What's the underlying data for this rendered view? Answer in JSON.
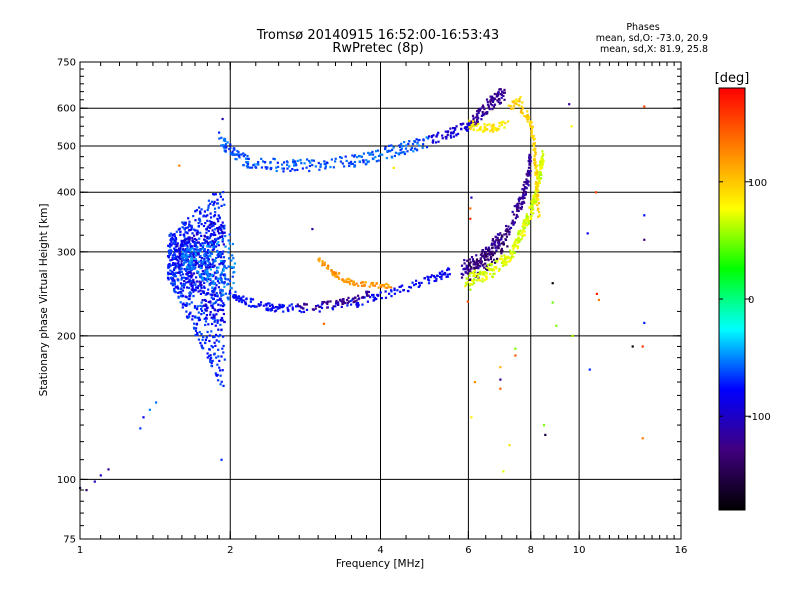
{
  "chart_data": {
    "type": "scatter",
    "title": "Tromsø 20140915 16:52:00-16:53:43",
    "subtitle": "RwPretec (8p)",
    "xlabel": "Frequency [MHz]",
    "ylabel": "Stationary phase Virtual Height [km]",
    "x_scale": "log",
    "y_scale": "log",
    "xlim": [
      1,
      16
    ],
    "ylim": [
      75,
      750
    ],
    "x_ticks": [
      1,
      2,
      4,
      6,
      8,
      10,
      16
    ],
    "x_tick_labels": [
      "1",
      "2",
      "4",
      "6",
      "8",
      "10",
      "16"
    ],
    "y_ticks": [
      75,
      100,
      200,
      300,
      400,
      500,
      600,
      750
    ],
    "y_tick_labels": [
      "75",
      "100",
      "200",
      "300",
      "400",
      "500",
      "600",
      "750"
    ],
    "x_gridlines": [
      2,
      4,
      6,
      8,
      10
    ],
    "y_gridlines": [
      100,
      200,
      300,
      400,
      500,
      600
    ],
    "grid": true,
    "phases_header": "Phases",
    "phase_stats": [
      "mean, sd,O: -73.0, 20.9",
      "mean, sd,X:  81.9, 25.8"
    ],
    "colorbar": {
      "label": "[deg]",
      "range": [
        -180,
        180
      ],
      "ticks": [
        100,
        0,
        -100
      ],
      "tick_labels": [
        "100",
        "0",
        "-100"
      ],
      "colors": [
        "#ff0000",
        "#ff8000",
        "#ffff00",
        "#00ff00",
        "#00ffff",
        "#0000ff",
        "#400080",
        "#000000"
      ]
    },
    "traces": [
      {
        "kind": "point",
        "phase": -140,
        "x": 1.0,
        "y": 96
      },
      {
        "kind": "point",
        "phase": -140,
        "x": 1.03,
        "y": 95
      },
      {
        "kind": "point",
        "phase": -110,
        "x": 1.07,
        "y": 99
      },
      {
        "kind": "point",
        "phase": -110,
        "x": 1.1,
        "y": 102
      },
      {
        "kind": "point",
        "phase": -120,
        "x": 1.14,
        "y": 105
      },
      {
        "kind": "point",
        "phase": -70,
        "x": 1.32,
        "y": 128
      },
      {
        "kind": "point",
        "phase": -70,
        "x": 1.34,
        "y": 135
      },
      {
        "kind": "point",
        "phase": -60,
        "x": 1.38,
        "y": 140
      },
      {
        "kind": "point",
        "phase": -60,
        "x": 1.42,
        "y": 145
      },
      {
        "kind": "cloud",
        "phase": -70,
        "x": [
          1.5,
          1.95
        ],
        "y": [
          150,
          420
        ],
        "n": 700
      },
      {
        "kind": "cloud",
        "phase": -90,
        "x": [
          1.55,
          1.95
        ],
        "y": [
          200,
          360
        ],
        "n": 250
      },
      {
        "kind": "cloud",
        "phase": -55,
        "x": [
          1.6,
          2.05
        ],
        "y": [
          230,
          330
        ],
        "n": 200
      },
      {
        "kind": "band",
        "phase": -60,
        "x": [
          1.9,
          2.0,
          2.1,
          2.2,
          2.4,
          2.6,
          2.8,
          3.1,
          3.4,
          3.7,
          4.0,
          4.3,
          4.6,
          5.0
        ],
        "y": [
          520,
          490,
          470,
          462,
          458,
          455,
          455,
          458,
          462,
          470,
          480,
          490,
          500,
          510
        ],
        "spread": 0.03,
        "n": 260
      },
      {
        "kind": "band",
        "phase": -95,
        "x": [
          5.0,
          5.3,
          5.6,
          5.9,
          6.1
        ],
        "y": [
          515,
          525,
          535,
          548,
          560
        ],
        "spread": 0.025,
        "n": 60
      },
      {
        "kind": "band",
        "phase": -80,
        "x": [
          2.0,
          2.1,
          2.3,
          2.5,
          2.8,
          3.2,
          3.6,
          4.0,
          4.5,
          5.0,
          5.5
        ],
        "y": [
          245,
          238,
          232,
          229,
          228,
          230,
          235,
          243,
          252,
          262,
          272
        ],
        "spread": 0.02,
        "n": 200
      },
      {
        "kind": "band",
        "phase": -120,
        "x": [
          2.7,
          3.0,
          3.3,
          3.6,
          3.8
        ],
        "y": [
          230,
          231,
          235,
          240,
          246
        ],
        "spread": 0.015,
        "n": 60
      },
      {
        "kind": "band",
        "phase": 120,
        "x": [
          3.0,
          3.2,
          3.4,
          3.6,
          3.9,
          4.2
        ],
        "y": [
          290,
          272,
          262,
          257,
          255,
          255
        ],
        "spread": 0.012,
        "n": 90
      },
      {
        "kind": "band",
        "phase": -120,
        "x": [
          5.8,
          6.2,
          6.6,
          7.0,
          7.4,
          7.7,
          7.9,
          8.0
        ],
        "y": [
          275,
          285,
          300,
          322,
          355,
          390,
          430,
          470
        ],
        "spread": 0.04,
        "n": 220
      },
      {
        "kind": "band",
        "phase": -140,
        "x": [
          6.0,
          6.4,
          6.8,
          7.2
        ],
        "y": [
          270,
          282,
          298,
          320
        ],
        "spread": 0.05,
        "n": 70
      },
      {
        "kind": "band",
        "phase": 70,
        "x": [
          5.9,
          6.4,
          6.9,
          7.3,
          7.7,
          8.0,
          8.2,
          8.35,
          8.45
        ],
        "y": [
          262,
          268,
          280,
          298,
          330,
          365,
          400,
          440,
          480
        ],
        "spread": 0.035,
        "n": 300
      },
      {
        "kind": "band",
        "phase": 95,
        "x": [
          7.6,
          7.85,
          8.0,
          8.1,
          8.15,
          8.2,
          8.25,
          8.3
        ],
        "y": [
          600,
          580,
          555,
          520,
          480,
          440,
          400,
          360
        ],
        "spread": 0.02,
        "n": 110
      },
      {
        "kind": "band",
        "phase": -120,
        "x": [
          6.1,
          6.3,
          6.5,
          6.7,
          6.9,
          7.1
        ],
        "y": [
          560,
          580,
          600,
          620,
          635,
          640
        ],
        "spread": 0.035,
        "n": 90
      },
      {
        "kind": "band",
        "phase": 85,
        "x": [
          6.0,
          6.3,
          6.6,
          6.9,
          7.2
        ],
        "y": [
          555,
          548,
          545,
          548,
          560
        ],
        "spread": 0.02,
        "n": 55
      },
      {
        "kind": "band",
        "phase": 95,
        "x": [
          7.2,
          7.4,
          7.6,
          7.7
        ],
        "y": [
          600,
          610,
          620,
          630
        ],
        "spread": 0.02,
        "n": 18
      },
      {
        "kind": "point",
        "phase": 140,
        "x": 1.58,
        "y": 455
      },
      {
        "kind": "point",
        "phase": -110,
        "x": 1.93,
        "y": 570
      },
      {
        "kind": "point",
        "phase": -60,
        "x": 1.92,
        "y": 110
      },
      {
        "kind": "point",
        "phase": -110,
        "x": 2.92,
        "y": 335
      },
      {
        "kind": "point",
        "phase": 140,
        "x": 3.08,
        "y": 212
      },
      {
        "kind": "point",
        "phase": 100,
        "x": 4.25,
        "y": 450
      },
      {
        "kind": "point",
        "phase": 140,
        "x": 5.98,
        "y": 236
      },
      {
        "kind": "point",
        "phase": 60,
        "x": 6.05,
        "y": 250
      },
      {
        "kind": "point",
        "phase": 150,
        "x": 6.05,
        "y": 352
      },
      {
        "kind": "point",
        "phase": 140,
        "x": 6.05,
        "y": 370
      },
      {
        "kind": "point",
        "phase": -110,
        "x": 6.08,
        "y": 390
      },
      {
        "kind": "point",
        "phase": 130,
        "x": 6.18,
        "y": 160
      },
      {
        "kind": "point",
        "phase": 90,
        "x": 6.08,
        "y": 135
      },
      {
        "kind": "point",
        "phase": 120,
        "x": 6.95,
        "y": 172
      },
      {
        "kind": "point",
        "phase": -130,
        "x": 6.95,
        "y": 162
      },
      {
        "kind": "point",
        "phase": 150,
        "x": 6.95,
        "y": 155
      },
      {
        "kind": "point",
        "phase": 90,
        "x": 7.25,
        "y": 118
      },
      {
        "kind": "point",
        "phase": 70,
        "x": 7.05,
        "y": 104
      },
      {
        "kind": "point",
        "phase": 60,
        "x": 7.45,
        "y": 188
      },
      {
        "kind": "point",
        "phase": 140,
        "x": 7.45,
        "y": 182
      },
      {
        "kind": "point",
        "phase": 60,
        "x": 8.5,
        "y": 130
      },
      {
        "kind": "point",
        "phase": -160,
        "x": 8.55,
        "y": 124
      },
      {
        "kind": "point",
        "phase": 40,
        "x": 8.85,
        "y": 235
      },
      {
        "kind": "point",
        "phase": -170,
        "x": 8.85,
        "y": 258
      },
      {
        "kind": "point",
        "phase": 60,
        "x": 9.0,
        "y": 210
      },
      {
        "kind": "point",
        "phase": -130,
        "x": 9.55,
        "y": 612
      },
      {
        "kind": "point",
        "phase": 70,
        "x": 9.65,
        "y": 550
      },
      {
        "kind": "point",
        "phase": 60,
        "x": 9.7,
        "y": 200
      },
      {
        "kind": "point",
        "phase": -80,
        "x": 10.4,
        "y": 328
      },
      {
        "kind": "point",
        "phase": -60,
        "x": 10.5,
        "y": 170
      },
      {
        "kind": "point",
        "phase": 160,
        "x": 10.85,
        "y": 245
      },
      {
        "kind": "point",
        "phase": 140,
        "x": 10.95,
        "y": 238
      },
      {
        "kind": "point",
        "phase": 150,
        "x": 10.8,
        "y": 400
      },
      {
        "kind": "point",
        "phase": 150,
        "x": 13.5,
        "y": 605
      },
      {
        "kind": "point",
        "phase": -80,
        "x": 13.5,
        "y": 358
      },
      {
        "kind": "point",
        "phase": -120,
        "x": 13.5,
        "y": 318
      },
      {
        "kind": "point",
        "phase": -80,
        "x": 13.5,
        "y": 213
      },
      {
        "kind": "point",
        "phase": 170,
        "x": 13.4,
        "y": 190
      },
      {
        "kind": "point",
        "phase": -170,
        "x": 12.8,
        "y": 190
      },
      {
        "kind": "point",
        "phase": 120,
        "x": 13.4,
        "y": 122
      }
    ]
  }
}
